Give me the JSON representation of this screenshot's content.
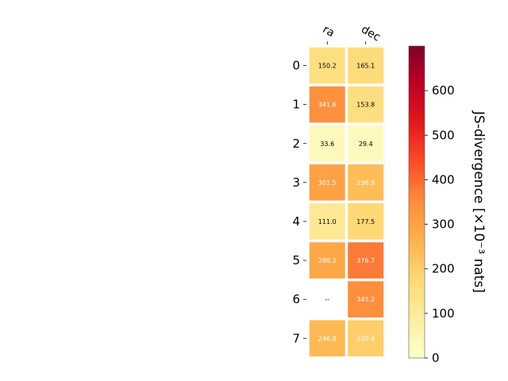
{
  "chart_data": {
    "type": "heatmap",
    "columns": [
      "ra",
      "dec"
    ],
    "rows": [
      "0",
      "1",
      "2",
      "3",
      "4",
      "5",
      "6",
      "7"
    ],
    "values": [
      [
        150.2,
        165.1
      ],
      [
        341.6,
        153.8
      ],
      [
        33.6,
        29.4
      ],
      [
        301.5,
        236.9
      ],
      [
        111.0,
        177.5
      ],
      [
        288.2,
        376.7
      ],
      [
        null,
        345.2
      ],
      [
        246.8,
        200.4
      ]
    ],
    "cell_labels": [
      [
        "150.2",
        "165.1"
      ],
      [
        "341.6",
        "153.8"
      ],
      [
        "33.6",
        "29.4"
      ],
      [
        "301.5",
        "236.9"
      ],
      [
        "111.0",
        "177.5"
      ],
      [
        "288.2",
        "376.7"
      ],
      [
        "--",
        "345.2"
      ],
      [
        "246.8",
        "200.4"
      ]
    ],
    "colorbar": {
      "label": "JS-divergence [×10⁻³ nats]",
      "range": [
        0,
        700
      ],
      "ticks": [
        0,
        100,
        200,
        300,
        400,
        500,
        600
      ],
      "colormap": "YlOrRd"
    }
  }
}
